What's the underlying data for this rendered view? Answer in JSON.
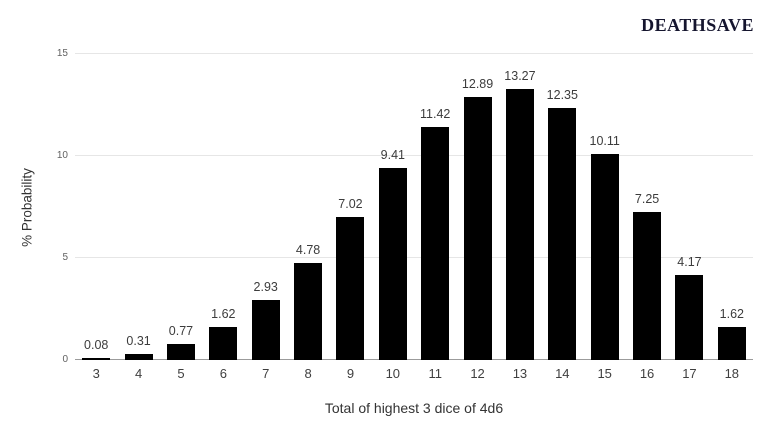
{
  "header": {
    "logo_text": "DEATHSAVE",
    "logo_color": "#15152e"
  },
  "chart_data": {
    "type": "bar",
    "title": "",
    "categories": [
      "3",
      "4",
      "5",
      "6",
      "7",
      "8",
      "9",
      "10",
      "11",
      "12",
      "13",
      "14",
      "15",
      "16",
      "17",
      "18"
    ],
    "values": [
      0.08,
      0.31,
      0.77,
      1.62,
      2.93,
      4.78,
      7.02,
      9.41,
      11.42,
      12.89,
      13.27,
      12.35,
      10.11,
      7.25,
      4.17,
      1.62
    ],
    "value_labels": [
      "0.08",
      "0.31",
      "0.77",
      "1.62",
      "2.93",
      "4.78",
      "7.02",
      "9.41",
      "11.42",
      "12.89",
      "13.27",
      "12.35",
      "10.11",
      "7.25",
      "4.17",
      "1.62"
    ],
    "xlabel": "Total of highest 3 dice of 4d6",
    "ylabel": "% Probability",
    "ylim": [
      0,
      15
    ],
    "yticks": [
      0,
      5,
      10,
      15
    ],
    "grid": true,
    "legend": "none",
    "bar_color": "#000000",
    "gridline_color": "#e6e6e6",
    "axis_line_color": "#9b9b9b",
    "value_label_color": "#3c3c3c",
    "tick_label_color": "#616161",
    "x_label_color": "#3f3f3f"
  }
}
